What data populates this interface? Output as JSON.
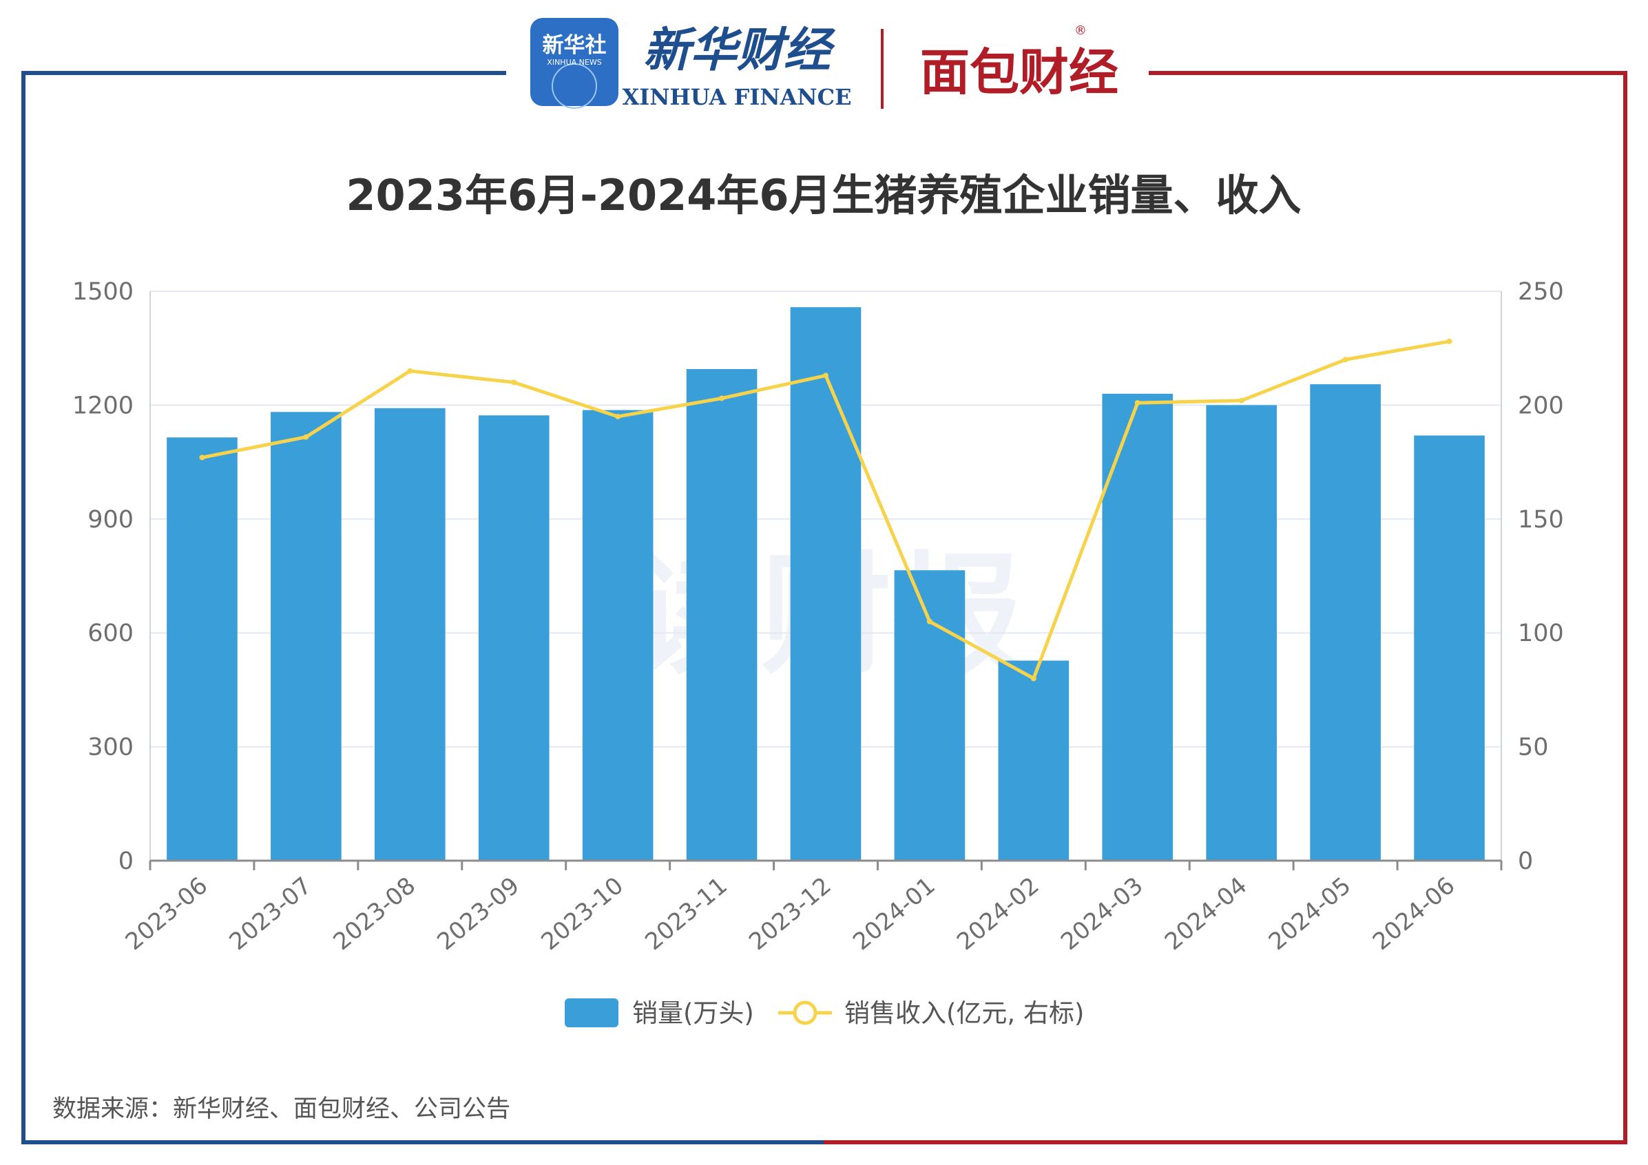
{
  "header": {
    "badge_cn": "新华社",
    "badge_en": "XINHUA NEWS",
    "brand_cn": "新华财经",
    "brand_en": "XINHUA FINANCE",
    "brand2_cn": "面包财经",
    "registered_mark": "®"
  },
  "watermark": "读财报",
  "footer": {
    "source": "数据来源：新华财经、面包财经、公司公告"
  },
  "colors": {
    "bar": "#3a9fd8",
    "line": "#f7d34b",
    "frame_left": "#1f4e8f",
    "frame_right": "#b11d27",
    "grid": "#e3e8f2"
  },
  "chart_data": {
    "type": "bar",
    "title": "2023年6月-2024年6月生猪养殖企业销量、收入",
    "categories": [
      "2023-06",
      "2023-07",
      "2023-08",
      "2023-09",
      "2023-10",
      "2023-11",
      "2023-12",
      "2024-01",
      "2024-02",
      "2024-03",
      "2024-04",
      "2024-05",
      "2024-06"
    ],
    "series": [
      {
        "name": "销量(万头)",
        "type": "bar",
        "axis": "left",
        "values": [
          1115,
          1182,
          1192,
          1173,
          1187,
          1295,
          1458,
          765,
          527,
          1230,
          1200,
          1255,
          1120
        ]
      },
      {
        "name": "销售收入(亿元, 右标)",
        "type": "line",
        "axis": "right",
        "values": [
          177,
          186,
          215,
          210,
          195,
          203,
          213,
          105,
          80,
          201,
          202,
          220,
          228
        ]
      }
    ],
    "y_left": {
      "min": 0,
      "max": 1500,
      "ticks": [
        0,
        300,
        600,
        900,
        1200,
        1500
      ]
    },
    "y_right": {
      "min": 0,
      "max": 250,
      "ticks": [
        0,
        50,
        100,
        150,
        200,
        250
      ]
    },
    "legend_position": "bottom-center",
    "grid": true
  }
}
